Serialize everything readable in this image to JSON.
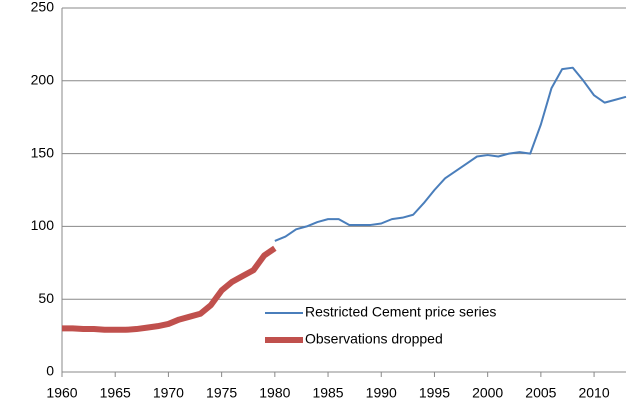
{
  "chart_data": {
    "type": "line",
    "series": [
      {
        "name": "Restricted Cement price series",
        "color": "#4a7ebb",
        "width": 2,
        "x": [
          1980,
          1981,
          1982,
          1983,
          1984,
          1985,
          1986,
          1987,
          1988,
          1989,
          1990,
          1991,
          1992,
          1993,
          1994,
          1995,
          1996,
          1997,
          1998,
          1999,
          2000,
          2001,
          2002,
          2003,
          2004,
          2005,
          2006,
          2007,
          2008,
          2009,
          2010,
          2011,
          2012,
          2013
        ],
        "values": [
          90,
          93,
          98,
          100,
          103,
          105,
          105,
          101,
          101,
          101,
          102,
          105,
          106,
          108,
          116,
          125,
          133,
          138,
          143,
          148,
          149,
          148,
          150,
          151,
          150,
          170,
          195,
          208,
          209,
          200,
          190,
          185,
          187,
          189
        ]
      },
      {
        "name": "Observations dropped",
        "color": "#c0504d",
        "width": 6,
        "x": [
          1960,
          1961,
          1962,
          1963,
          1964,
          1965,
          1966,
          1967,
          1968,
          1969,
          1970,
          1971,
          1972,
          1973,
          1974,
          1975,
          1976,
          1977,
          1978,
          1979,
          1980
        ],
        "values": [
          30,
          30,
          29.5,
          29.5,
          29,
          29,
          29,
          29.5,
          30.5,
          31.5,
          33,
          36,
          38,
          40,
          46,
          56,
          62,
          66,
          70,
          80,
          85
        ]
      }
    ],
    "xlim": [
      1960,
      2013
    ],
    "xticks": [
      1960,
      1965,
      1970,
      1975,
      1980,
      1985,
      1990,
      1995,
      2000,
      2005,
      2010
    ],
    "ylim": [
      0,
      250
    ],
    "yticks": [
      0,
      50,
      100,
      150,
      200,
      250
    ],
    "grid": true,
    "legend": "bottom-center"
  }
}
